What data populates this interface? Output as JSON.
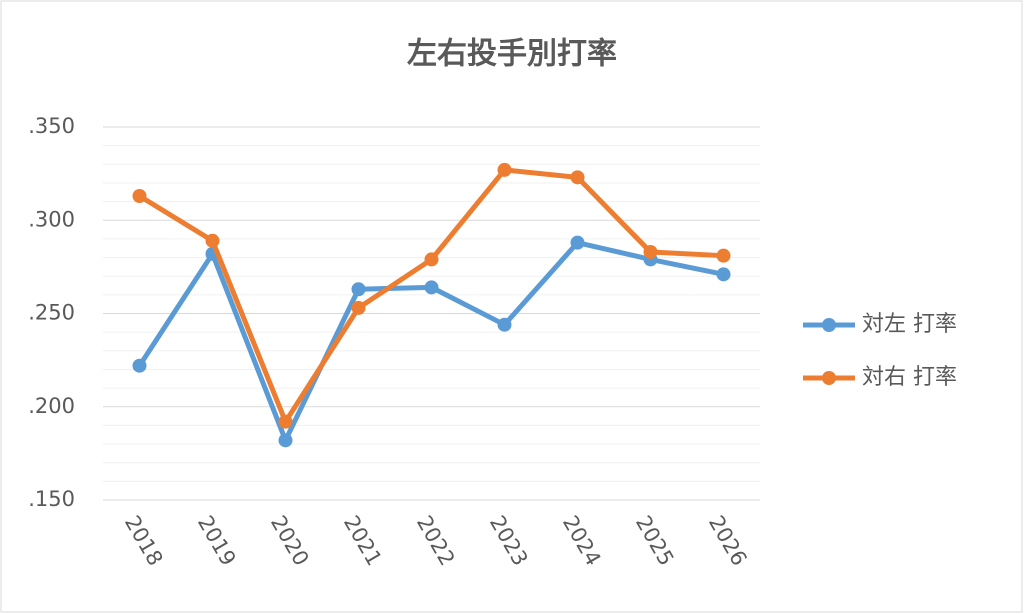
{
  "chart_data": {
    "type": "line",
    "title": "左右投手別打率",
    "categories": [
      "2018",
      "2019",
      "2020",
      "2021",
      "2022",
      "2023",
      "2024",
      "2025",
      "2026"
    ],
    "series": [
      {
        "name": "対左 打率",
        "color": "#5b9bd5",
        "values": [
          0.222,
          0.282,
          0.182,
          0.263,
          0.264,
          0.244,
          0.288,
          0.279,
          0.271
        ]
      },
      {
        "name": "対右 打率",
        "color": "#ed7d31",
        "values": [
          0.313,
          0.289,
          0.192,
          0.253,
          0.279,
          0.327,
          0.323,
          0.283,
          0.281
        ]
      }
    ],
    "ylim": [
      0.15,
      0.35
    ],
    "yticks": [
      {
        "value": 0.15,
        "label": ".150"
      },
      {
        "value": 0.2,
        "label": ".200"
      },
      {
        "value": 0.25,
        "label": ".250"
      },
      {
        "value": 0.3,
        "label": ".300"
      },
      {
        "value": 0.35,
        "label": ".350"
      }
    ],
    "minor_grid": [
      0.16,
      0.17,
      0.18,
      0.19,
      0.21,
      0.22,
      0.23,
      0.24,
      0.26,
      0.27,
      0.28,
      0.29,
      0.31,
      0.32,
      0.33,
      0.34
    ],
    "grid": true,
    "legend": "right"
  }
}
